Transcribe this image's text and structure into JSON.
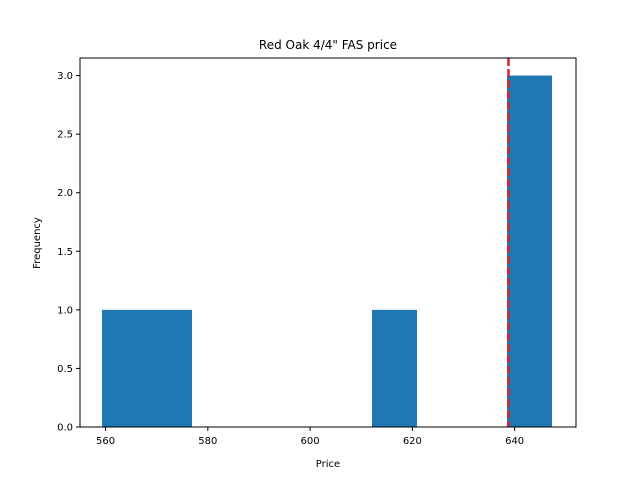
{
  "chart_data": {
    "type": "bar",
    "title": "Red Oak 4/4\" FAS price",
    "xlabel": "Price",
    "ylabel": "Frequency",
    "xlim": [
      555,
      652
    ],
    "ylim": [
      0,
      3.15
    ],
    "xticks": [
      560,
      580,
      600,
      620,
      640
    ],
    "yticks": [
      0.0,
      0.5,
      1.0,
      1.5,
      2.0,
      2.5,
      3.0
    ],
    "ytick_labels": [
      "0.0",
      "0.5",
      "1.0",
      "1.5",
      "2.0",
      "2.5",
      "3.0"
    ],
    "bins": [
      {
        "start": 559.3,
        "end": 568.1,
        "count": 1
      },
      {
        "start": 568.1,
        "end": 576.9,
        "count": 1
      },
      {
        "start": 576.9,
        "end": 585.7,
        "count": 0
      },
      {
        "start": 585.7,
        "end": 594.5,
        "count": 0
      },
      {
        "start": 594.5,
        "end": 603.3,
        "count": 0
      },
      {
        "start": 603.3,
        "end": 612.1,
        "count": 0
      },
      {
        "start": 612.1,
        "end": 620.9,
        "count": 1
      },
      {
        "start": 620.9,
        "end": 629.7,
        "count": 0
      },
      {
        "start": 629.7,
        "end": 638.5,
        "count": 0
      },
      {
        "start": 638.5,
        "end": 647.3,
        "count": 3
      }
    ],
    "reference_line": {
      "x": 638.8,
      "color": "#d62728",
      "style": "dashed"
    },
    "bar_color": "#1f77b4",
    "grid": false
  }
}
